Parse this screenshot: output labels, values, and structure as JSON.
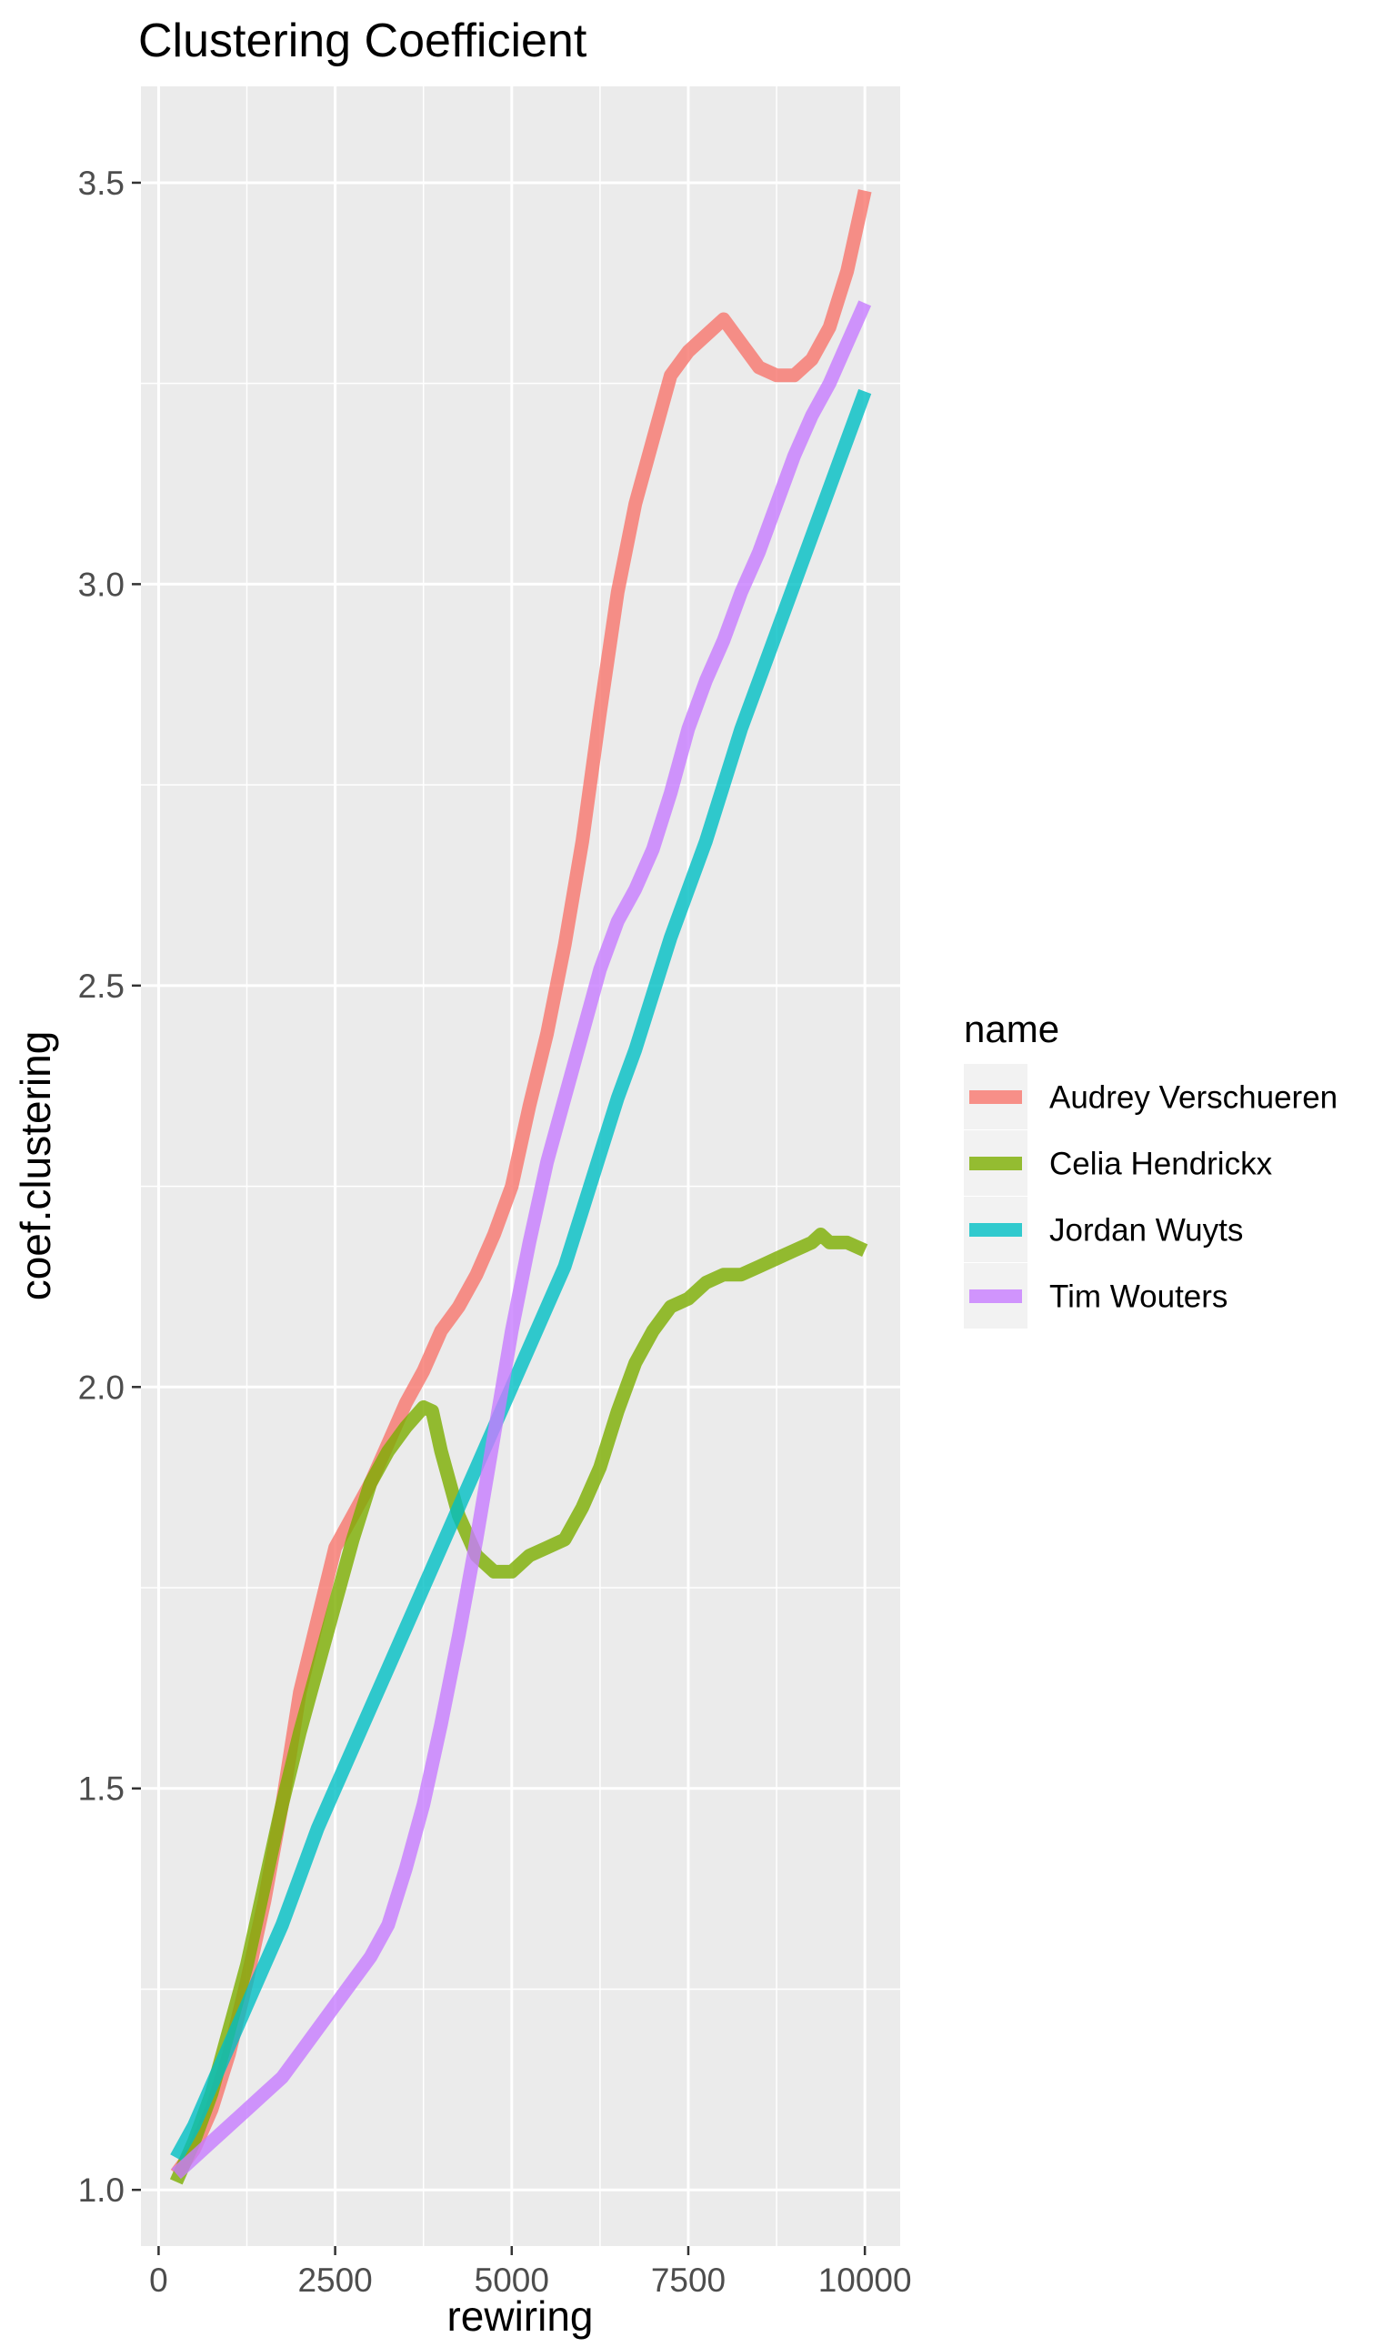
{
  "chart_data": {
    "type": "line",
    "title": "Clustering Coefficient",
    "xlabel": "rewiring",
    "ylabel": "coef.clustering",
    "xlim": [
      -250,
      10500
    ],
    "ylim": [
      0.93,
      3.62
    ],
    "x_ticks": [
      0,
      2500,
      5000,
      7500,
      10000
    ],
    "y_ticks": [
      1.0,
      1.5,
      2.0,
      2.5,
      3.0,
      3.5
    ],
    "x_tick_labels": [
      "0",
      "2500",
      "5000",
      "7500",
      "10000"
    ],
    "y_tick_labels": [
      "1.0",
      "1.5",
      "2.0",
      "2.5",
      "3.0",
      "3.5"
    ],
    "grid": true,
    "background": "#ebebeb",
    "legend": {
      "title": "name",
      "position": "right"
    },
    "series": [
      {
        "name": "Audrey Verschueren",
        "color": "#F8766D",
        "x": [
          250,
          500,
          750,
          1000,
          1250,
          1500,
          1750,
          2000,
          2250,
          2500,
          2750,
          3000,
          3250,
          3500,
          3750,
          4000,
          4250,
          4500,
          4750,
          5000,
          5250,
          5500,
          5750,
          6000,
          6250,
          6500,
          6750,
          7000,
          7250,
          7500,
          7750,
          8000,
          8250,
          8500,
          8750,
          9000,
          9250,
          9500,
          9750,
          10000
        ],
        "y": [
          1.02,
          1.05,
          1.1,
          1.17,
          1.26,
          1.36,
          1.48,
          1.62,
          1.71,
          1.8,
          1.84,
          1.88,
          1.93,
          1.98,
          2.02,
          2.07,
          2.1,
          2.14,
          2.19,
          2.25,
          2.35,
          2.44,
          2.55,
          2.68,
          2.84,
          2.99,
          3.1,
          3.18,
          3.26,
          3.29,
          3.31,
          3.33,
          3.3,
          3.27,
          3.26,
          3.26,
          3.28,
          3.32,
          3.39,
          3.49
        ]
      },
      {
        "name": "Celia Hendrickx",
        "color": "#7CAE00",
        "x": [
          250,
          500,
          750,
          1000,
          1250,
          1500,
          1750,
          2000,
          2250,
          2500,
          2750,
          3000,
          3250,
          3500,
          3750,
          3875,
          4000,
          4250,
          4500,
          4750,
          5000,
          5250,
          5500,
          5750,
          6000,
          6250,
          6500,
          6750,
          7000,
          7250,
          7500,
          7750,
          8000,
          8250,
          8500,
          8750,
          9000,
          9250,
          9375,
          9500,
          9750,
          10000
        ],
        "y": [
          1.01,
          1.06,
          1.12,
          1.2,
          1.28,
          1.38,
          1.48,
          1.57,
          1.65,
          1.73,
          1.81,
          1.88,
          1.92,
          1.95,
          1.975,
          1.97,
          1.92,
          1.84,
          1.79,
          1.77,
          1.77,
          1.79,
          1.8,
          1.81,
          1.85,
          1.9,
          1.97,
          2.03,
          2.07,
          2.1,
          2.11,
          2.13,
          2.14,
          2.14,
          2.15,
          2.16,
          2.17,
          2.18,
          2.19,
          2.18,
          2.18,
          2.17
        ]
      },
      {
        "name": "Jordan Wuyts",
        "color": "#00BFC4",
        "x": [
          250,
          500,
          750,
          1000,
          1250,
          1500,
          1750,
          2000,
          2250,
          2500,
          2750,
          3000,
          3250,
          3500,
          3750,
          4000,
          4250,
          4500,
          4750,
          5000,
          5250,
          5500,
          5750,
          6000,
          6250,
          6500,
          6750,
          7000,
          7250,
          7500,
          7750,
          8000,
          8250,
          8500,
          8750,
          9000,
          9250,
          9500,
          9750,
          10000
        ],
        "y": [
          1.04,
          1.08,
          1.13,
          1.18,
          1.23,
          1.28,
          1.33,
          1.39,
          1.45,
          1.5,
          1.55,
          1.6,
          1.65,
          1.7,
          1.75,
          1.8,
          1.85,
          1.9,
          1.95,
          2.0,
          2.05,
          2.1,
          2.15,
          2.22,
          2.29,
          2.36,
          2.42,
          2.49,
          2.56,
          2.62,
          2.68,
          2.75,
          2.82,
          2.88,
          2.94,
          3.0,
          3.06,
          3.12,
          3.18,
          3.24
        ]
      },
      {
        "name": "Tim Wouters",
        "color": "#C77CFF",
        "x": [
          250,
          500,
          750,
          1000,
          1250,
          1500,
          1750,
          2000,
          2250,
          2500,
          2750,
          3000,
          3250,
          3500,
          3750,
          4000,
          4250,
          4500,
          4750,
          5000,
          5250,
          5500,
          5750,
          6000,
          6250,
          6500,
          6750,
          7000,
          7250,
          7500,
          7750,
          8000,
          8250,
          8500,
          8750,
          9000,
          9250,
          9500,
          9750,
          10000
        ],
        "y": [
          1.02,
          1.04,
          1.06,
          1.08,
          1.1,
          1.12,
          1.14,
          1.17,
          1.2,
          1.23,
          1.26,
          1.29,
          1.33,
          1.4,
          1.48,
          1.58,
          1.69,
          1.81,
          1.94,
          2.07,
          2.18,
          2.28,
          2.36,
          2.44,
          2.52,
          2.58,
          2.62,
          2.67,
          2.74,
          2.82,
          2.88,
          2.93,
          2.99,
          3.04,
          3.1,
          3.16,
          3.21,
          3.25,
          3.3,
          3.35
        ]
      }
    ]
  }
}
